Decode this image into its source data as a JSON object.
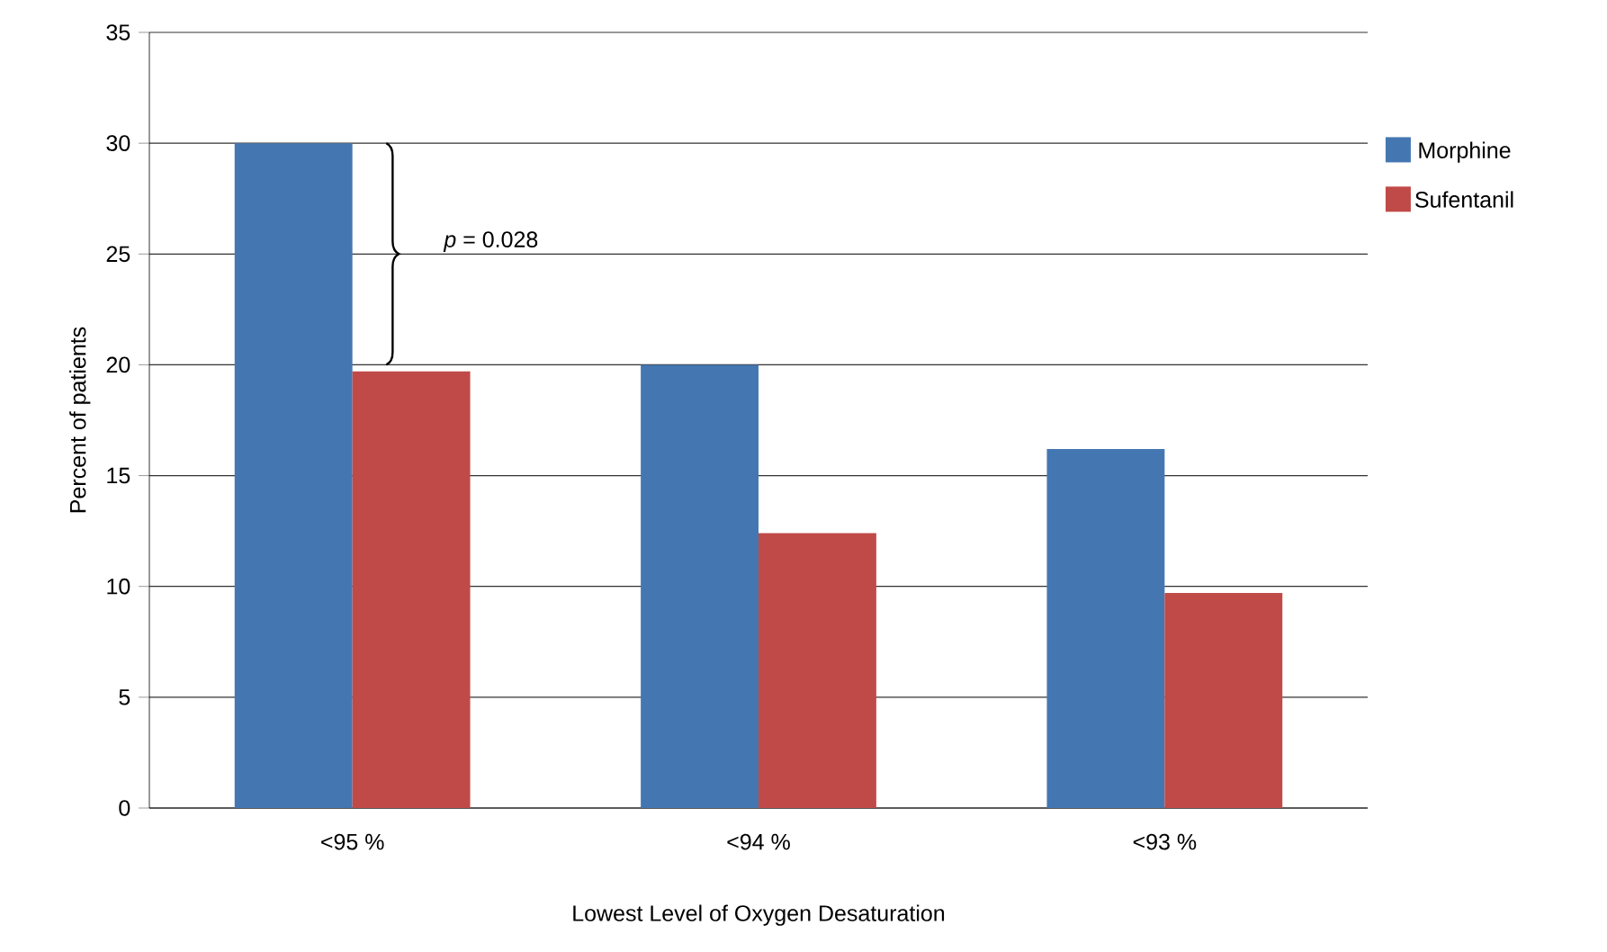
{
  "chart_data": {
    "type": "bar",
    "xlabel": "Lowest Level of Oxygen Desaturation",
    "ylabel": "Percent of patients",
    "categories": [
      "<95 %",
      "<94 %",
      "<93 %"
    ],
    "series": [
      {
        "name": "Morphine",
        "color": "#4477b2",
        "values": [
          30,
          20,
          16.2
        ]
      },
      {
        "name": "Sufentanil",
        "color": "#c04a48",
        "values": [
          19.7,
          12.4,
          9.7
        ]
      }
    ],
    "ylim": [
      0,
      35
    ],
    "yticks": [
      0,
      5,
      10,
      15,
      20,
      25,
      30,
      35
    ],
    "grid": "y",
    "legend": "right",
    "annotations": [
      "*p* = 0.028"
    ]
  }
}
